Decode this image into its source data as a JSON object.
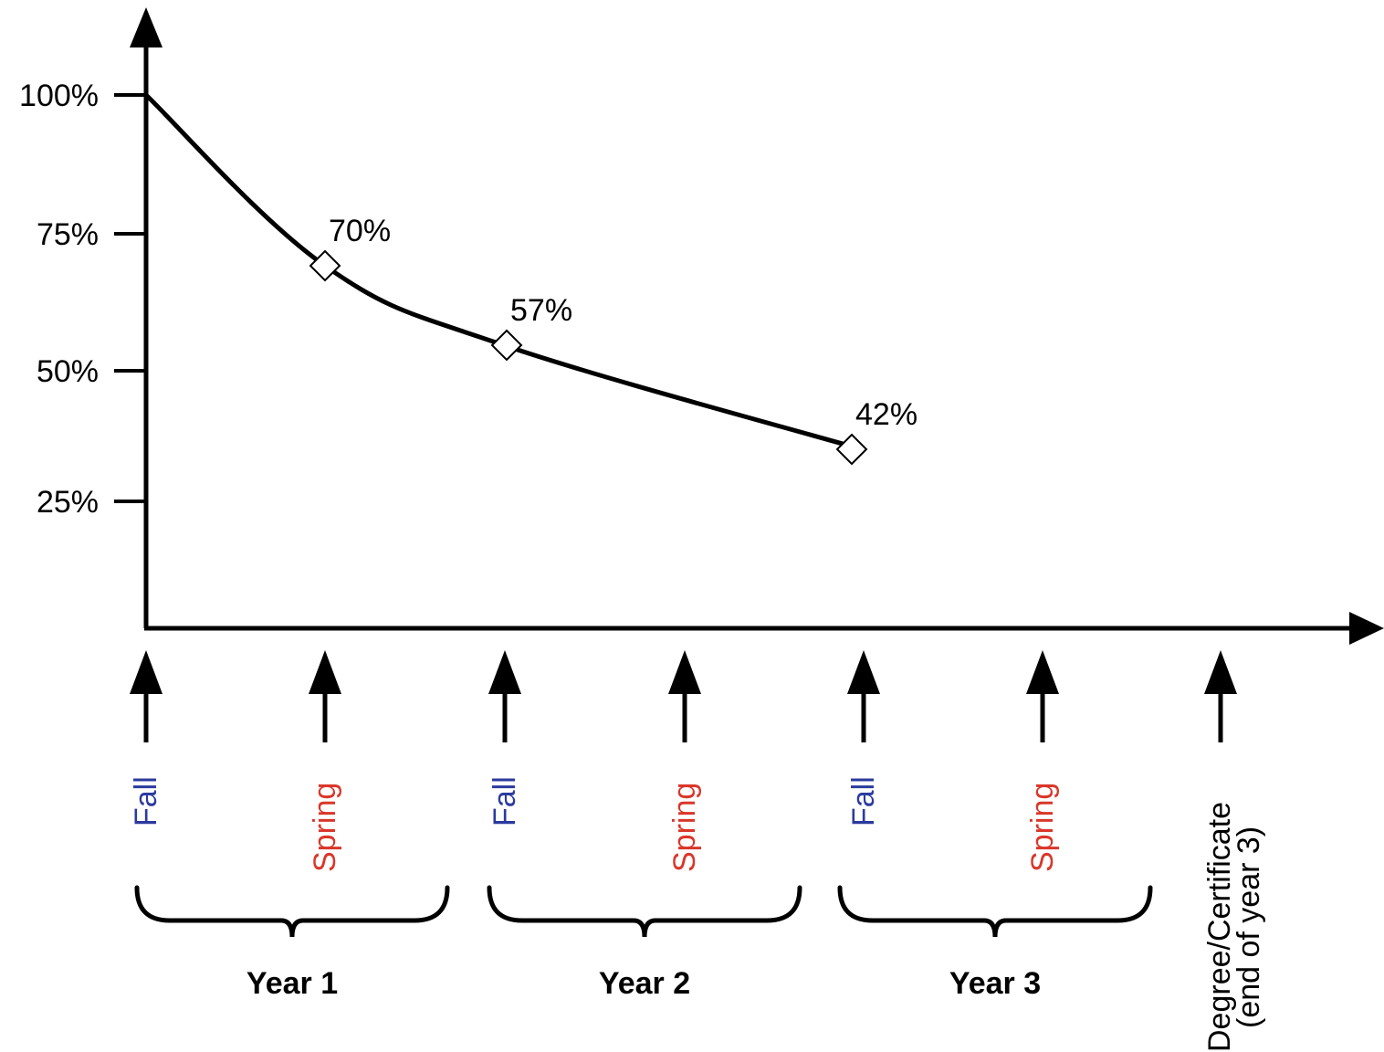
{
  "chart_data": {
    "type": "line",
    "yticks": [
      {
        "value": 100,
        "label": "100%"
      },
      {
        "value": 75,
        "label": "75%"
      },
      {
        "value": 50,
        "label": "50%"
      },
      {
        "value": 25,
        "label": "25%"
      }
    ],
    "series": [
      {
        "points": [
          {
            "x": 0,
            "y": 100
          },
          {
            "x": 1,
            "y": 70,
            "label": "70%"
          },
          {
            "x": 2,
            "y": 57,
            "label": "57%"
          },
          {
            "x": 4,
            "y": 42,
            "label": "42%"
          }
        ]
      }
    ],
    "timeline": [
      {
        "label": "Fall",
        "kind": "fall"
      },
      {
        "label": "Spring",
        "kind": "spring"
      },
      {
        "label": "Fall",
        "kind": "fall"
      },
      {
        "label": "Spring",
        "kind": "spring"
      },
      {
        "label": "Fall",
        "kind": "fall"
      },
      {
        "label": "Spring",
        "kind": "spring"
      },
      {
        "label": "Degree/Certificate",
        "label2": "(end of year 3)",
        "kind": "degree"
      }
    ],
    "years": [
      "Year 1",
      "Year 2",
      "Year 3"
    ],
    "colors": {
      "fall": "#2b3a9e",
      "spring": "#d9372a",
      "degree": "#000000",
      "line": "#000000"
    }
  }
}
